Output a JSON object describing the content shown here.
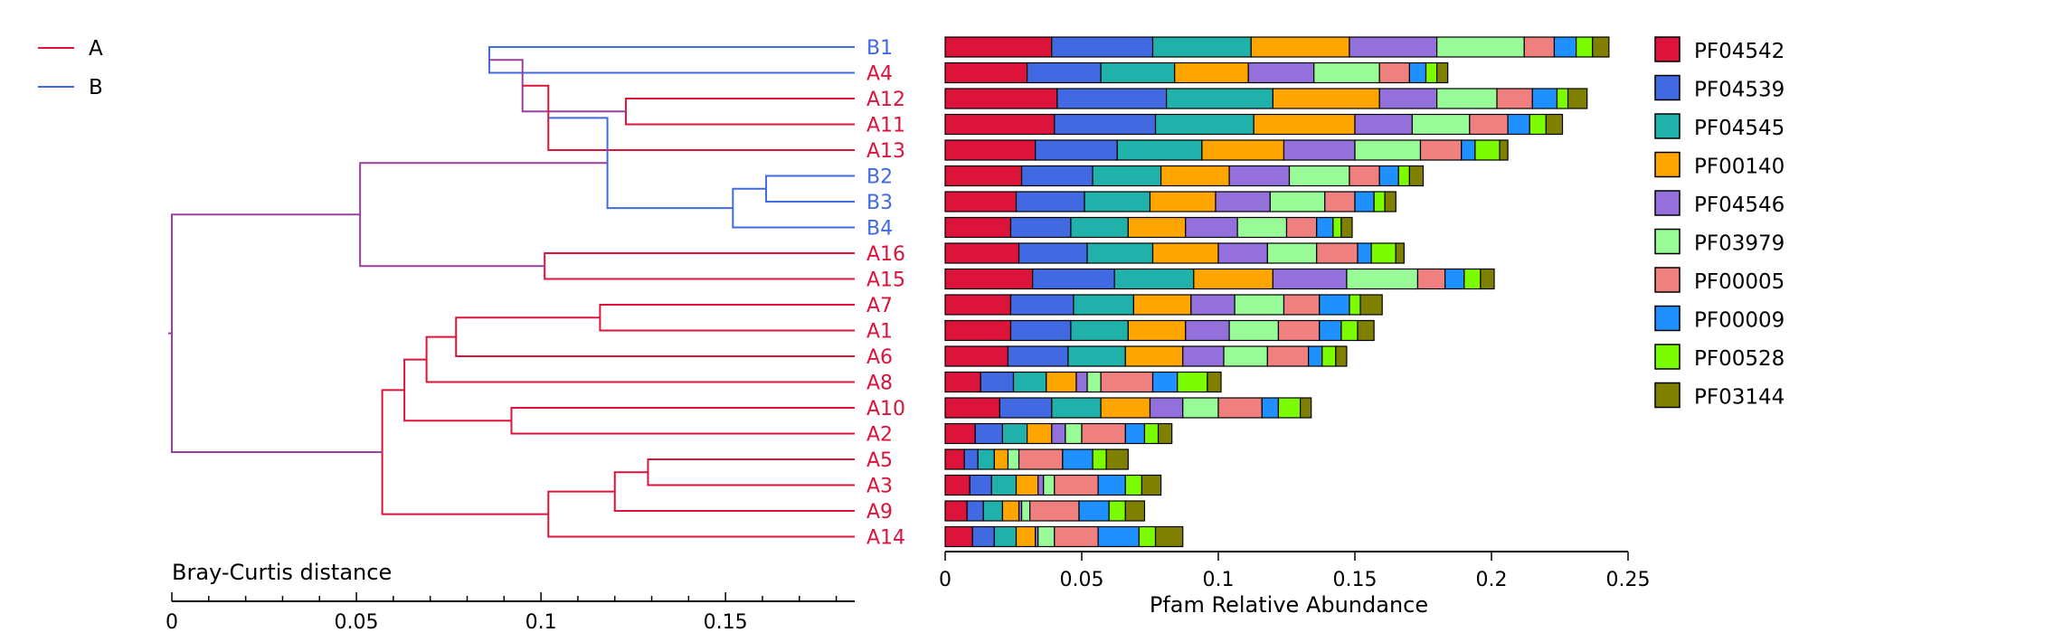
{
  "chart_data": [
    {
      "type": "dendrogram",
      "title": "",
      "xlabel": "Bray-Curtis distance",
      "xlim": [
        0,
        0.185
      ],
      "xticks": [
        0,
        0.05,
        0.1,
        0.15
      ],
      "xtick_labels": [
        "0",
        "0.05",
        "0.1",
        "0.15"
      ],
      "legend": {
        "position": "top-left",
        "entries": [
          {
            "name": "A",
            "color": "#dc143c"
          },
          {
            "name": "B",
            "color": "#4169e1"
          }
        ]
      },
      "leaves": [
        {
          "label": "B1",
          "group": "B"
        },
        {
          "label": "A4",
          "group": "A"
        },
        {
          "label": "A12",
          "group": "A"
        },
        {
          "label": "A11",
          "group": "A"
        },
        {
          "label": "A13",
          "group": "A"
        },
        {
          "label": "B2",
          "group": "B"
        },
        {
          "label": "B3",
          "group": "B"
        },
        {
          "label": "B4",
          "group": "B"
        },
        {
          "label": "A16",
          "group": "A"
        },
        {
          "label": "A15",
          "group": "A"
        },
        {
          "label": "A7",
          "group": "A"
        },
        {
          "label": "A1",
          "group": "A"
        },
        {
          "label": "A6",
          "group": "A"
        },
        {
          "label": "A8",
          "group": "A"
        },
        {
          "label": "A10",
          "group": "A"
        },
        {
          "label": "A2",
          "group": "A"
        },
        {
          "label": "A5",
          "group": "A"
        },
        {
          "label": "A3",
          "group": "A"
        },
        {
          "label": "A9",
          "group": "A"
        },
        {
          "label": "A14",
          "group": "A"
        }
      ],
      "merges": [
        {
          "id": "n1",
          "children": [
            "B1",
            "A4"
          ],
          "height": 0.099,
          "color": "#4169e1"
        },
        {
          "id": "n2",
          "children": [
            "A12",
            "A11"
          ],
          "height": 0.062,
          "color": "#dc143c"
        },
        {
          "id": "n3",
          "children": [
            "n1",
            "n2"
          ],
          "height": 0.09,
          "color": "#9b3fa0"
        },
        {
          "id": "n4",
          "children": [
            "n3",
            "A13"
          ],
          "height": 0.083,
          "color": "#dc143c"
        },
        {
          "id": "n5",
          "children": [
            "B2",
            "B3"
          ],
          "height": 0.024,
          "color": "#4169e1"
        },
        {
          "id": "n6",
          "children": [
            "n5",
            "B4"
          ],
          "height": 0.033,
          "color": "#4169e1"
        },
        {
          "id": "n7",
          "children": [
            "n4",
            "n6"
          ],
          "height": 0.067,
          "color": "#4169e1"
        },
        {
          "id": "n8",
          "children": [
            "A16",
            "A15"
          ],
          "height": 0.084,
          "color": "#dc143c"
        },
        {
          "id": "n9",
          "children": [
            "n7",
            "n8"
          ],
          "height": 0.134,
          "color": "#9b3fa0"
        },
        {
          "id": "n10",
          "children": [
            "A7",
            "A1"
          ],
          "height": 0.069,
          "color": "#dc143c"
        },
        {
          "id": "n11",
          "children": [
            "n10",
            "A6"
          ],
          "height": 0.108,
          "color": "#dc143c"
        },
        {
          "id": "n12",
          "children": [
            "n11",
            "A8"
          ],
          "height": 0.116,
          "color": "#dc143c"
        },
        {
          "id": "n13",
          "children": [
            "A10",
            "A2"
          ],
          "height": 0.093,
          "color": "#dc143c"
        },
        {
          "id": "n14",
          "children": [
            "n12",
            "n13"
          ],
          "height": 0.122,
          "color": "#dc143c"
        },
        {
          "id": "n15",
          "children": [
            "A5",
            "A3"
          ],
          "height": 0.056,
          "color": "#dc143c"
        },
        {
          "id": "n16",
          "children": [
            "n15",
            "A9"
          ],
          "height": 0.065,
          "color": "#dc143c"
        },
        {
          "id": "n17",
          "children": [
            "n16",
            "A14"
          ],
          "height": 0.083,
          "color": "#dc143c"
        },
        {
          "id": "n18",
          "children": [
            "n14",
            "n17"
          ],
          "height": 0.128,
          "color": "#dc143c"
        },
        {
          "id": "n19",
          "children": [
            "n9",
            "n18"
          ],
          "height": 0.185,
          "color": "#9b3fa0"
        }
      ]
    },
    {
      "type": "bar",
      "orientation": "horizontal",
      "stacked": true,
      "title": "",
      "xlabel": "Pfam Relative Abundance",
      "ylabel": "",
      "xlim": [
        0,
        0.25
      ],
      "xticks": [
        0,
        0.05,
        0.1,
        0.15,
        0.2,
        0.25
      ],
      "xtick_labels": [
        "0",
        "0.05",
        "0.1",
        "0.15",
        "0.2",
        "0.25"
      ],
      "legend_position": "right",
      "categories": [
        "B1",
        "A4",
        "A12",
        "A11",
        "A13",
        "B2",
        "B3",
        "B4",
        "A16",
        "A15",
        "A7",
        "A1",
        "A6",
        "A8",
        "A10",
        "A2",
        "A5",
        "A3",
        "A9",
        "A14"
      ],
      "series": [
        {
          "name": "PF04542",
          "color": "#dc143c",
          "values": [
            0.039,
            0.03,
            0.041,
            0.04,
            0.033,
            0.028,
            0.026,
            0.024,
            0.027,
            0.032,
            0.024,
            0.024,
            0.023,
            0.013,
            0.02,
            0.011,
            0.007,
            0.009,
            0.008,
            0.01
          ]
        },
        {
          "name": "PF04539",
          "color": "#4169e1",
          "values": [
            0.037,
            0.027,
            0.04,
            0.037,
            0.03,
            0.026,
            0.025,
            0.022,
            0.025,
            0.03,
            0.023,
            0.022,
            0.022,
            0.012,
            0.019,
            0.01,
            0.005,
            0.008,
            0.006,
            0.008
          ]
        },
        {
          "name": "PF04545",
          "color": "#20b2aa",
          "values": [
            0.036,
            0.027,
            0.039,
            0.036,
            0.031,
            0.025,
            0.024,
            0.021,
            0.024,
            0.029,
            0.022,
            0.021,
            0.021,
            0.012,
            0.018,
            0.009,
            0.006,
            0.009,
            0.007,
            0.008
          ]
        },
        {
          "name": "PF00140",
          "color": "#ffa500",
          "values": [
            0.036,
            0.027,
            0.039,
            0.037,
            0.03,
            0.025,
            0.024,
            0.021,
            0.024,
            0.029,
            0.021,
            0.021,
            0.021,
            0.011,
            0.018,
            0.009,
            0.005,
            0.008,
            0.006,
            0.007
          ]
        },
        {
          "name": "PF04546",
          "color": "#9370db",
          "values": [
            0.032,
            0.024,
            0.021,
            0.021,
            0.026,
            0.022,
            0.02,
            0.019,
            0.018,
            0.027,
            0.016,
            0.016,
            0.015,
            0.004,
            0.012,
            0.005,
            0.0,
            0.002,
            0.001,
            0.001
          ]
        },
        {
          "name": "PF03979",
          "color": "#98fb98",
          "values": [
            0.032,
            0.024,
            0.022,
            0.021,
            0.024,
            0.022,
            0.02,
            0.018,
            0.018,
            0.026,
            0.018,
            0.018,
            0.016,
            0.005,
            0.013,
            0.006,
            0.004,
            0.004,
            0.003,
            0.006
          ]
        },
        {
          "name": "PF00005",
          "color": "#f08080",
          "values": [
            0.011,
            0.011,
            0.013,
            0.014,
            0.015,
            0.011,
            0.011,
            0.011,
            0.015,
            0.01,
            0.013,
            0.015,
            0.015,
            0.019,
            0.016,
            0.016,
            0.016,
            0.016,
            0.018,
            0.016
          ]
        },
        {
          "name": "PF00009",
          "color": "#1e90ff",
          "values": [
            0.008,
            0.006,
            0.009,
            0.008,
            0.005,
            0.007,
            0.007,
            0.006,
            0.005,
            0.007,
            0.011,
            0.008,
            0.005,
            0.009,
            0.006,
            0.007,
            0.011,
            0.01,
            0.011,
            0.015
          ]
        },
        {
          "name": "PF00528",
          "color": "#7cfc00",
          "values": [
            0.006,
            0.004,
            0.004,
            0.006,
            0.009,
            0.004,
            0.004,
            0.003,
            0.009,
            0.006,
            0.004,
            0.006,
            0.005,
            0.011,
            0.008,
            0.005,
            0.005,
            0.006,
            0.006,
            0.006
          ]
        },
        {
          "name": "PF03144",
          "color": "#808000",
          "values": [
            0.006,
            0.004,
            0.007,
            0.006,
            0.003,
            0.005,
            0.004,
            0.004,
            0.003,
            0.005,
            0.008,
            0.006,
            0.004,
            0.005,
            0.004,
            0.005,
            0.008,
            0.007,
            0.007,
            0.01
          ]
        }
      ]
    }
  ]
}
